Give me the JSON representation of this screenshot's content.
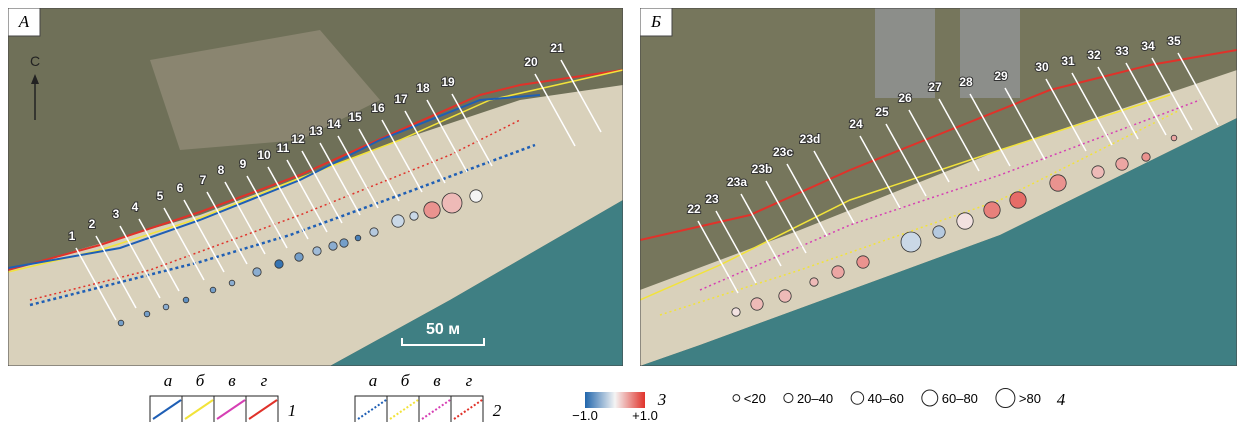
{
  "panels": [
    {
      "label": "А",
      "north": "С",
      "scale": "50 м",
      "profiles": [
        "1",
        "2",
        "3",
        "4",
        "5",
        "6",
        "7",
        "8",
        "9",
        "10",
        "11",
        "12",
        "13",
        "14",
        "15",
        "16",
        "17",
        "18",
        "19",
        "20",
        "21"
      ],
      "markers": [
        {
          "value": -0.6,
          "size_class": 0
        },
        {
          "value": -0.6,
          "size_class": 0
        },
        {
          "value": -0.5,
          "size_class": 0
        },
        {
          "value": -0.7,
          "size_class": 0
        },
        {
          "value": -0.6,
          "size_class": 0
        },
        {
          "value": -0.5,
          "size_class": 0
        },
        {
          "value": -0.5,
          "size_class": 1
        },
        {
          "value": -0.9,
          "size_class": 1
        },
        {
          "value": -0.6,
          "size_class": 1
        },
        {
          "value": -0.4,
          "size_class": 1
        },
        {
          "value": -0.5,
          "size_class": 1
        },
        {
          "value": -0.6,
          "size_class": 1
        },
        {
          "value": -0.8,
          "size_class": 0
        },
        {
          "value": -0.3,
          "size_class": 1
        },
        {
          "value": -0.2,
          "size_class": 2
        },
        {
          "value": -0.2,
          "size_class": 1
        },
        {
          "value": 0.5,
          "size_class": 3
        },
        {
          "value": 0.3,
          "size_class": 4
        },
        {
          "value": 0,
          "size_class": 2
        }
      ]
    },
    {
      "label": "Б",
      "profiles": [
        "22",
        "23",
        "23a",
        "23b",
        "23c",
        "23d",
        "24",
        "25",
        "26",
        "27",
        "28",
        "29",
        "30",
        "31",
        "32",
        "33",
        "34",
        "35"
      ],
      "markers": [
        {
          "value": 0.1,
          "size_class": 1
        },
        {
          "value": 0.3,
          "size_class": 2
        },
        {
          "value": 0.3,
          "size_class": 2
        },
        {
          "value": 0.3,
          "size_class": 1
        },
        {
          "value": 0.4,
          "size_class": 2
        },
        {
          "value": 0.5,
          "size_class": 2
        },
        {
          "value": -0.2,
          "size_class": 4
        },
        {
          "value": -0.3,
          "size_class": 2
        },
        {
          "value": 0.1,
          "size_class": 3
        },
        {
          "value": 0.6,
          "size_class": 3
        },
        {
          "value": 0.7,
          "size_class": 3
        },
        {
          "value": 0.5,
          "size_class": 3
        },
        {
          "value": 0.3,
          "size_class": 2
        },
        {
          "value": 0.4,
          "size_class": 2
        },
        {
          "value": 0.5,
          "size_class": 1
        },
        {
          "value": 0.4,
          "size_class": 0
        }
      ]
    }
  ],
  "legend": {
    "letters": [
      "а",
      "б",
      "в",
      "г"
    ],
    "colors": [
      "#1f5fb5",
      "#f2e33a",
      "#d63fb4",
      "#e0322a"
    ],
    "solid_label": "1",
    "dotted_label": "2",
    "color_scale": {
      "ticks": [
        {
          "value": -1,
          "label": "−1.0"
        },
        {
          "value": 1,
          "label": "+1.0"
        }
      ],
      "label": "3"
    },
    "size_classes": [
      "<20",
      "20–40",
      "40–60",
      "60–80",
      ">80"
    ],
    "size_label": "4"
  }
}
